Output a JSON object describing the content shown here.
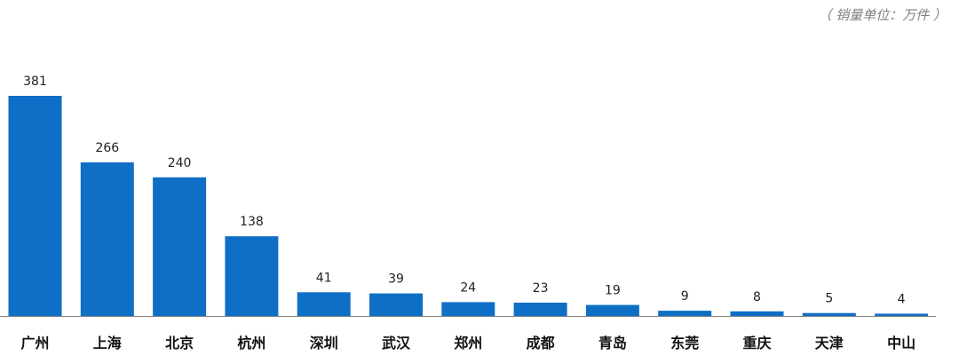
{
  "unit_note": "（ 销量单位：万件 ）",
  "chart_data": {
    "type": "bar",
    "title": "",
    "xlabel": "",
    "ylabel": "",
    "categories": [
      "广州",
      "上海",
      "北京",
      "杭州",
      "深圳",
      "武汉",
      "郑州",
      "成都",
      "青岛",
      "东莞",
      "重庆",
      "天津",
      "中山"
    ],
    "values": [
      381,
      266,
      240,
      138,
      41,
      39,
      24,
      23,
      19,
      9,
      8,
      5,
      4
    ],
    "ylim": [
      0,
      381
    ],
    "grid": false,
    "bar_color": "#0f6fc6"
  }
}
